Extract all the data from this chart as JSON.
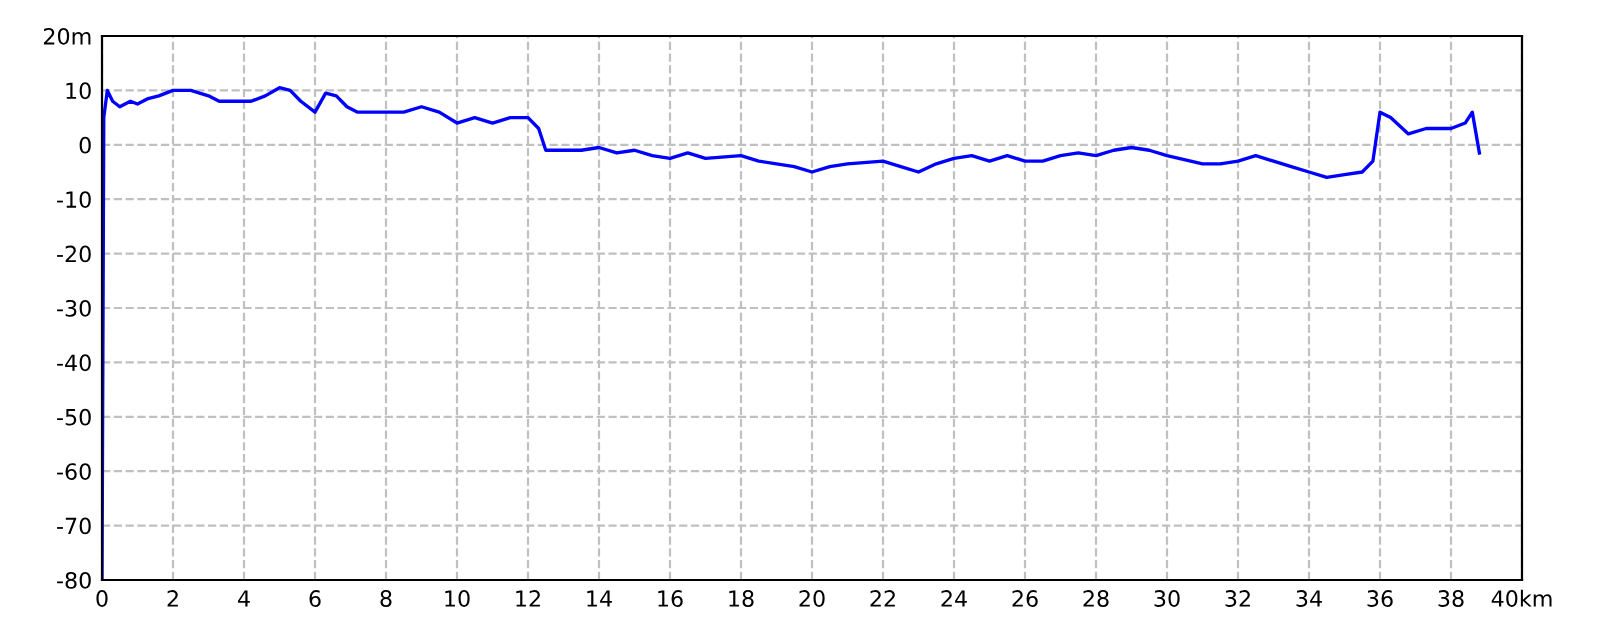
{
  "chart_data": {
    "type": "line",
    "x": [
      0,
      0.05,
      0.15,
      0.3,
      0.5,
      0.8,
      1.0,
      1.3,
      1.6,
      2.0,
      2.5,
      3.0,
      3.3,
      3.8,
      4.2,
      4.6,
      5.0,
      5.3,
      5.6,
      6.0,
      6.3,
      6.6,
      6.9,
      7.2,
      8.0,
      8.5,
      9.0,
      9.5,
      10.0,
      10.5,
      11,
      11.5,
      12.0,
      12.3,
      12.5,
      13,
      13.5,
      14,
      14.5,
      15,
      15.5,
      16,
      16.5,
      17,
      18,
      18.5,
      19,
      19.5,
      20,
      20.5,
      21,
      22,
      22.5,
      23,
      23.5,
      24,
      24.5,
      25,
      25.5,
      26,
      26.5,
      27,
      27.5,
      28,
      28.5,
      29,
      29.5,
      30,
      31,
      31.5,
      32,
      32.5,
      33,
      33.5,
      34,
      34.5,
      35,
      35.5,
      35.8,
      36,
      36.3,
      36.8,
      37.3,
      38,
      38.4,
      38.6,
      38.8
    ],
    "series": [
      {
        "color": "#0000ff",
        "values": [
          -80,
          5,
          10,
          8,
          7,
          8,
          7.5,
          8.5,
          9,
          10,
          10,
          9,
          8,
          8,
          8,
          9,
          10.5,
          10,
          8,
          6,
          9.5,
          9,
          7,
          6,
          6,
          6,
          7,
          6,
          4,
          5,
          4,
          5,
          5,
          3,
          -1,
          -1,
          -1,
          -0.5,
          -1.5,
          -1,
          -2,
          -2.5,
          -1.5,
          -2.5,
          -2,
          -3,
          -3.5,
          -4,
          -5,
          -4,
          -3.5,
          -3,
          -4,
          -5,
          -3.5,
          -2.5,
          -2,
          -3,
          -2,
          -3,
          -3,
          -2,
          -1.5,
          -2,
          -1,
          -0.5,
          -1,
          -2,
          -3.5,
          -3.5,
          -3,
          -2,
          -3,
          -4,
          -5,
          -6,
          -5.5,
          -5,
          -3,
          6,
          5,
          2,
          3,
          3,
          4,
          6,
          -1.5
        ]
      }
    ],
    "xlim": [
      0,
      40
    ],
    "ylim": [
      -80,
      20
    ],
    "xticks": [
      0,
      2,
      4,
      6,
      8,
      10,
      12,
      14,
      16,
      18,
      20,
      22,
      24,
      26,
      28,
      30,
      32,
      34,
      36,
      38,
      {
        "value": 40,
        "label": "40km"
      }
    ],
    "yticks": [
      -80,
      -70,
      -60,
      -50,
      -40,
      -30,
      -20,
      -10,
      0,
      10,
      {
        "value": 20,
        "label": "20m"
      }
    ],
    "grid": true,
    "line_style": "solid",
    "marker": "none"
  }
}
